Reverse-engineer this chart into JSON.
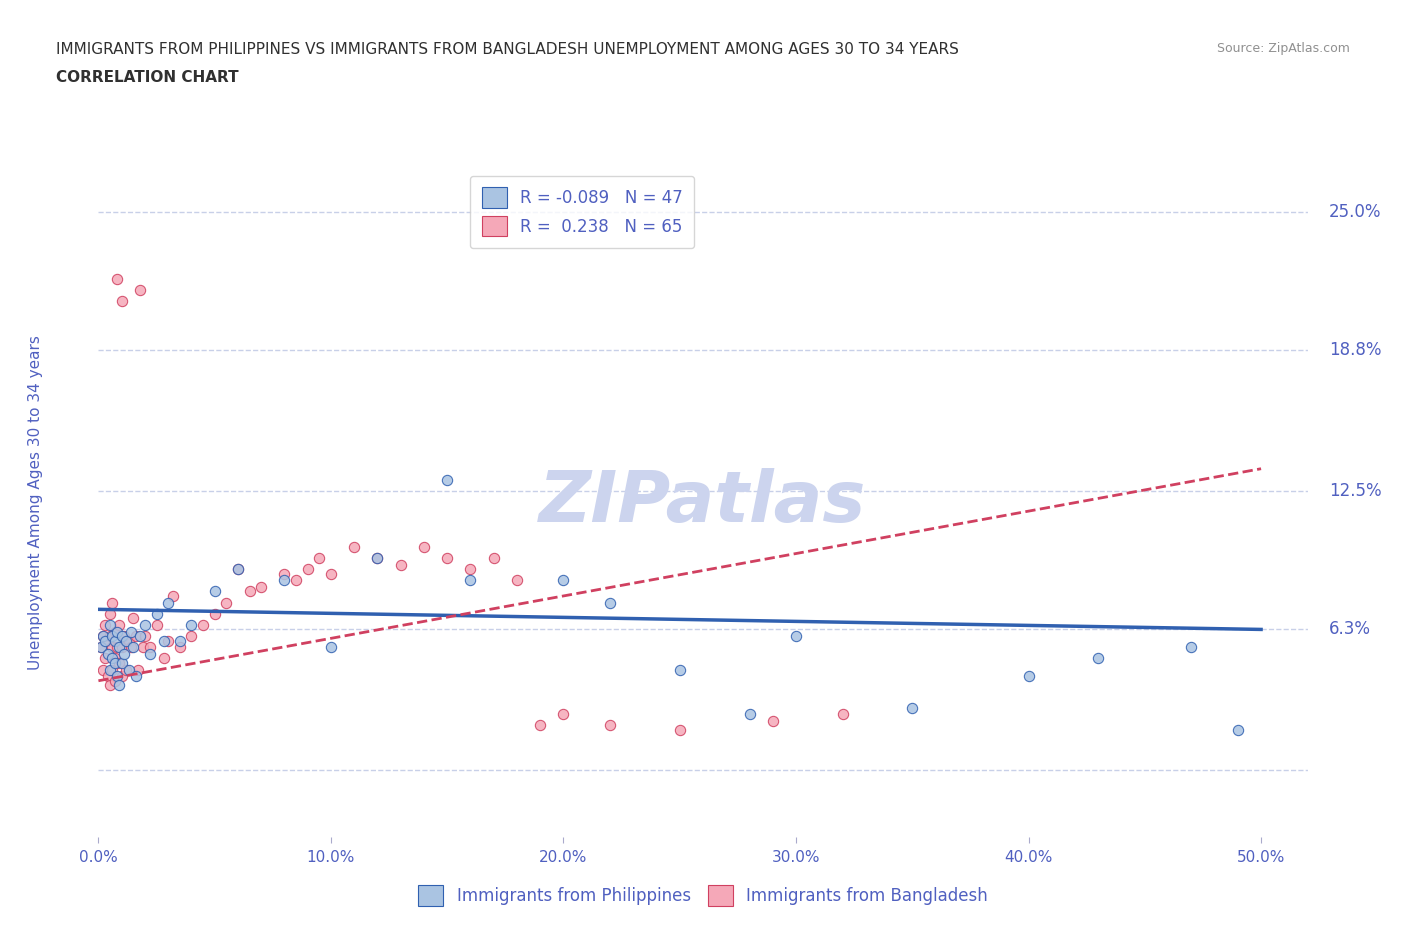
{
  "title_line1": "IMMIGRANTS FROM PHILIPPINES VS IMMIGRANTS FROM BANGLADESH UNEMPLOYMENT AMONG AGES 30 TO 34 YEARS",
  "title_line2": "CORRELATION CHART",
  "source": "Source: ZipAtlas.com",
  "ylabel": "Unemployment Among Ages 30 to 34 years",
  "xlim": [
    0.0,
    0.52
  ],
  "ylim": [
    -0.03,
    0.27
  ],
  "yticks": [
    0.0,
    0.063,
    0.125,
    0.188,
    0.25
  ],
  "ytick_labels": [
    "",
    "6.3%",
    "12.5%",
    "18.8%",
    "25.0%"
  ],
  "xticks": [
    0.0,
    0.1,
    0.2,
    0.3,
    0.4,
    0.5
  ],
  "xtick_labels": [
    "0.0%",
    "10.0%",
    "20.0%",
    "30.0%",
    "40.0%",
    "50.0%"
  ],
  "philippines_color": "#aac4e2",
  "bangladesh_color": "#f5a8b8",
  "philippines_R": -0.089,
  "philippines_N": 47,
  "bangladesh_R": 0.238,
  "bangladesh_N": 65,
  "trend_blue": "#3060b0",
  "trend_pink": "#d04060",
  "axis_color": "#5060c0",
  "background_color": "#ffffff",
  "grid_color": "#c8d0e8",
  "title_color": "#303030",
  "source_color": "#909090",
  "watermark_color": "#ccd4ee",
  "philippines_x": [
    0.001,
    0.002,
    0.003,
    0.004,
    0.005,
    0.005,
    0.006,
    0.006,
    0.007,
    0.007,
    0.008,
    0.008,
    0.009,
    0.009,
    0.01,
    0.01,
    0.011,
    0.012,
    0.013,
    0.014,
    0.015,
    0.016,
    0.018,
    0.02,
    0.022,
    0.025,
    0.028,
    0.03,
    0.035,
    0.04,
    0.05,
    0.06,
    0.08,
    0.1,
    0.12,
    0.15,
    0.16,
    0.2,
    0.22,
    0.25,
    0.28,
    0.3,
    0.35,
    0.4,
    0.43,
    0.47,
    0.49
  ],
  "philippines_y": [
    0.055,
    0.06,
    0.058,
    0.052,
    0.065,
    0.045,
    0.06,
    0.05,
    0.058,
    0.048,
    0.062,
    0.042,
    0.055,
    0.038,
    0.06,
    0.048,
    0.052,
    0.058,
    0.045,
    0.062,
    0.055,
    0.042,
    0.06,
    0.065,
    0.052,
    0.07,
    0.058,
    0.075,
    0.058,
    0.065,
    0.08,
    0.09,
    0.085,
    0.055,
    0.095,
    0.13,
    0.085,
    0.085,
    0.075,
    0.045,
    0.025,
    0.06,
    0.028,
    0.042,
    0.05,
    0.055,
    0.018
  ],
  "bangladesh_x": [
    0.001,
    0.002,
    0.002,
    0.003,
    0.003,
    0.004,
    0.004,
    0.005,
    0.005,
    0.005,
    0.006,
    0.006,
    0.006,
    0.007,
    0.007,
    0.007,
    0.008,
    0.008,
    0.009,
    0.009,
    0.01,
    0.01,
    0.01,
    0.011,
    0.012,
    0.013,
    0.014,
    0.015,
    0.016,
    0.017,
    0.018,
    0.019,
    0.02,
    0.022,
    0.025,
    0.028,
    0.03,
    0.032,
    0.035,
    0.04,
    0.045,
    0.05,
    0.055,
    0.06,
    0.065,
    0.07,
    0.08,
    0.085,
    0.09,
    0.095,
    0.1,
    0.11,
    0.12,
    0.13,
    0.14,
    0.15,
    0.16,
    0.17,
    0.18,
    0.19,
    0.2,
    0.22,
    0.25,
    0.29,
    0.32
  ],
  "bangladesh_y": [
    0.055,
    0.045,
    0.06,
    0.05,
    0.065,
    0.042,
    0.058,
    0.038,
    0.06,
    0.07,
    0.045,
    0.055,
    0.075,
    0.05,
    0.062,
    0.04,
    0.055,
    0.22,
    0.048,
    0.065,
    0.055,
    0.042,
    0.21,
    0.06,
    0.045,
    0.058,
    0.055,
    0.068,
    0.06,
    0.045,
    0.215,
    0.055,
    0.06,
    0.055,
    0.065,
    0.05,
    0.058,
    0.078,
    0.055,
    0.06,
    0.065,
    0.07,
    0.075,
    0.09,
    0.08,
    0.082,
    0.088,
    0.085,
    0.09,
    0.095,
    0.088,
    0.1,
    0.095,
    0.092,
    0.1,
    0.095,
    0.09,
    0.095,
    0.085,
    0.02,
    0.025,
    0.02,
    0.018,
    0.022,
    0.025
  ]
}
